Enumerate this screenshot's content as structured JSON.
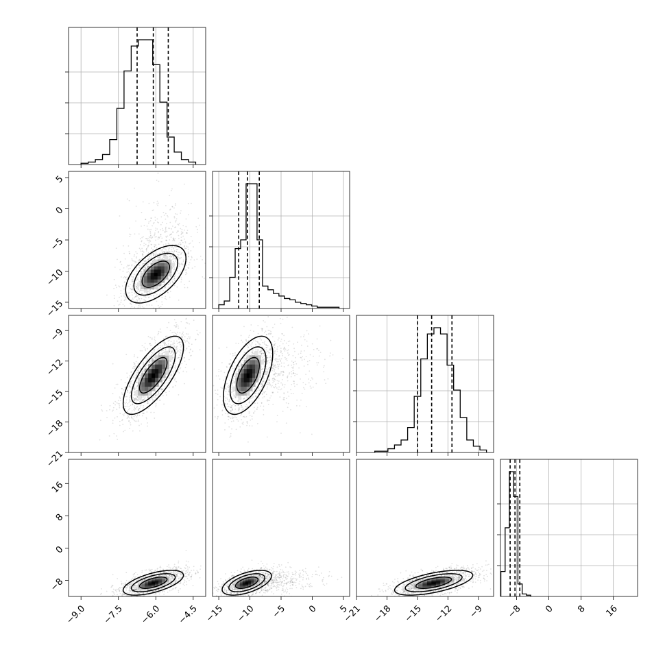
{
  "chart_data": {
    "type": "corner",
    "colors": {
      "contour": "#000000",
      "grid": "#b0b0b0",
      "points": "#000000",
      "density_dark": "#000000",
      "density_light": "#d9d9d9"
    },
    "parameters": [
      {
        "range": [
          -9.5,
          -4.0
        ],
        "ticks": [
          "-9.0",
          "-7.5",
          "-6.0",
          "-4.5"
        ],
        "tick_values": [
          -9.0,
          -7.5,
          -6.0,
          -4.5
        ],
        "quantiles": [
          -6.75,
          -6.1,
          -5.5
        ],
        "hist": {
          "min": -9.0,
          "max": -4.4,
          "counts": [
            1,
            2,
            4,
            8,
            20,
            45,
            75,
            95,
            100,
            100,
            80,
            50,
            22,
            10,
            4,
            2
          ]
        },
        "peak": 0.55
      },
      {
        "range": [
          -16,
          6
        ],
        "ticks": [
          "-15",
          "-10",
          "-5",
          "0",
          "5"
        ],
        "tick_values": [
          -15,
          -10,
          -5,
          0,
          5
        ],
        "y_ticks": [
          "5",
          "0",
          "-5",
          "-10",
          "-15"
        ],
        "y_tick_values": [
          5,
          0,
          -5,
          -10,
          -15
        ],
        "quantiles": [
          -11.8,
          -10.4,
          -8.5
        ],
        "hist": {
          "min": -15,
          "max": 4.3,
          "counts": [
            3,
            6,
            25,
            48,
            55,
            100,
            100,
            55,
            18,
            15,
            12,
            10,
            8,
            7,
            5,
            4,
            3,
            2,
            1,
            1,
            1,
            1
          ]
        },
        "peak": 0.5
      },
      {
        "range": [
          -21,
          -7.5
        ],
        "ticks": [
          "-21",
          "-18",
          "-15",
          "-12",
          "-9"
        ],
        "tick_values": [
          -21,
          -18,
          -15,
          -12,
          -9
        ],
        "y_ticks": [
          "-9",
          "-12",
          "-15",
          "-18",
          "-21"
        ],
        "y_tick_values": [
          -9,
          -12,
          -15,
          -18,
          -21
        ],
        "quantiles": [
          -15.0,
          -13.6,
          -11.6
        ],
        "hist": {
          "min": -19.2,
          "max": -8.2,
          "counts": [
            1,
            1,
            3,
            6,
            10,
            20,
            45,
            75,
            95,
            100,
            95,
            70,
            50,
            28,
            10,
            5,
            2
          ]
        },
        "peak": 0.62
      },
      {
        "range": [
          -12,
          22
        ],
        "ticks": [
          "-8",
          "0",
          "8",
          "16"
        ],
        "tick_values": [
          -8,
          0,
          8,
          16
        ],
        "y_ticks": [
          "16",
          "8",
          "0",
          "-8"
        ],
        "y_tick_values": [
          16,
          8,
          0,
          -8
        ],
        "quantiles": [
          -9.6,
          -8.4,
          -7.2
        ],
        "hist": {
          "min": -11.9,
          "max": -4.5,
          "counts": [
            20,
            55,
            100,
            80,
            10,
            2,
            1
          ]
        },
        "peak": 0.38
      }
    ],
    "pairs": [
      {
        "row": 1,
        "col": 0,
        "mean": [
          -6.0,
          -10.5
        ],
        "sd": [
          0.55,
          2.1
        ],
        "rho": 0.55,
        "tail": "up"
      },
      {
        "row": 2,
        "col": 0,
        "mean": [
          -6.1,
          -13.4
        ],
        "sd": [
          0.55,
          1.75
        ],
        "rho": 0.72
      },
      {
        "row": 2,
        "col": 1,
        "mean": [
          -10.3,
          -13.4
        ],
        "sd": [
          1.8,
          1.75
        ],
        "rho": 0.55,
        "tail": "right"
      },
      {
        "row": 3,
        "col": 0,
        "mean": [
          -6.1,
          -8.6
        ],
        "sd": [
          0.55,
          1.4
        ],
        "rho": 0.6
      },
      {
        "row": 3,
        "col": 1,
        "mean": [
          -10.5,
          -8.6
        ],
        "sd": [
          1.8,
          1.4
        ],
        "rho": 0.55,
        "tail": "right"
      },
      {
        "row": 3,
        "col": 2,
        "mean": [
          -13.4,
          -8.6
        ],
        "sd": [
          1.75,
          1.4
        ],
        "rho": 0.6
      }
    ]
  }
}
